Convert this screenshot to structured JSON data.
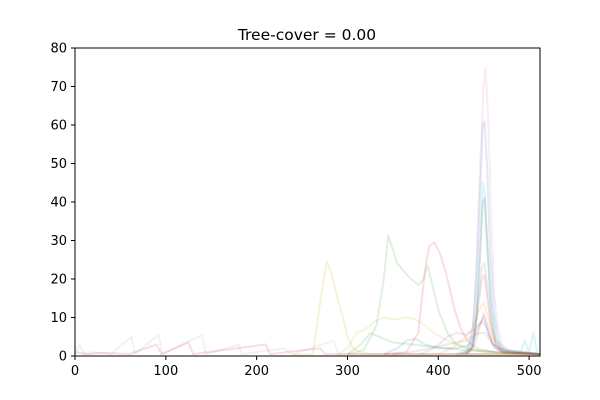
{
  "chart_data": {
    "type": "line",
    "title": "Tree-cover = 0.00",
    "xlabel": "",
    "ylabel": "",
    "xlim": [
      0,
      512
    ],
    "ylim": [
      0,
      80
    ],
    "xticks": [
      0,
      100,
      200,
      300,
      400,
      500
    ],
    "yticks": [
      0,
      10,
      20,
      30,
      40,
      50,
      60,
      70,
      80
    ],
    "grid": false,
    "legend": "none",
    "line_opacity": 0.15,
    "series": [
      {
        "color": "#d4a000",
        "points": [
          [
            240,
            0.3
          ],
          [
            262,
            0.5
          ],
          [
            270,
            14
          ],
          [
            277,
            24.5
          ],
          [
            282,
            22
          ],
          [
            288,
            16
          ],
          [
            295,
            10
          ],
          [
            300,
            5
          ],
          [
            306,
            2
          ],
          [
            315,
            0.8
          ],
          [
            330,
            0.5
          ],
          [
            512,
            0.5
          ]
        ]
      },
      {
        "color": "#2ca02c",
        "points": [
          [
            300,
            0.5
          ],
          [
            318,
            1.5
          ],
          [
            332,
            8
          ],
          [
            340,
            20
          ],
          [
            345,
            31.5
          ],
          [
            348,
            29
          ],
          [
            355,
            24
          ],
          [
            362,
            22
          ],
          [
            370,
            20
          ],
          [
            378,
            18.5
          ],
          [
            384,
            20
          ],
          [
            388,
            23.5
          ],
          [
            393,
            19
          ],
          [
            400,
            12
          ],
          [
            410,
            6
          ],
          [
            420,
            3
          ],
          [
            440,
            1.5
          ],
          [
            480,
            0.5
          ],
          [
            512,
            0.5
          ]
        ]
      },
      {
        "color": "#d62728",
        "points": [
          [
            340,
            0.5
          ],
          [
            365,
            1
          ],
          [
            378,
            6
          ],
          [
            385,
            22
          ],
          [
            390,
            28.5
          ],
          [
            396,
            29.5
          ],
          [
            402,
            26.5
          ],
          [
            408,
            22
          ],
          [
            413,
            17
          ],
          [
            418,
            12
          ],
          [
            425,
            7
          ],
          [
            432,
            4
          ],
          [
            442,
            2
          ],
          [
            460,
            1
          ],
          [
            512,
            0.5
          ]
        ]
      },
      {
        "color": "#e377c2",
        "points": [
          [
            420,
            0.5
          ],
          [
            432,
            1
          ],
          [
            438,
            6
          ],
          [
            442,
            24
          ],
          [
            446,
            50
          ],
          [
            450,
            70
          ],
          [
            452,
            75
          ],
          [
            455,
            62
          ],
          [
            458,
            38
          ],
          [
            461,
            18
          ],
          [
            465,
            8
          ],
          [
            470,
            3
          ],
          [
            480,
            1
          ],
          [
            512,
            0.5
          ]
        ]
      },
      {
        "color": "#1f77b4",
        "points": [
          [
            420,
            0.5
          ],
          [
            432,
            1.5
          ],
          [
            438,
            7
          ],
          [
            442,
            20
          ],
          [
            446,
            42
          ],
          [
            449,
            60
          ],
          [
            451,
            61
          ],
          [
            454,
            48
          ],
          [
            457,
            28
          ],
          [
            461,
            12
          ],
          [
            466,
            4
          ],
          [
            475,
            1
          ],
          [
            512,
            0.5
          ]
        ]
      },
      {
        "color": "#17becf",
        "points": [
          [
            430,
            0.5
          ],
          [
            438,
            2
          ],
          [
            442,
            12
          ],
          [
            446,
            30
          ],
          [
            449,
            45
          ],
          [
            451,
            43
          ],
          [
            454,
            30
          ],
          [
            458,
            15
          ],
          [
            463,
            5
          ],
          [
            472,
            1
          ],
          [
            512,
            0.5
          ]
        ]
      },
      {
        "color": "#444444",
        "points": [
          [
            430,
            0.5
          ],
          [
            438,
            2
          ],
          [
            442,
            10
          ],
          [
            446,
            26
          ],
          [
            449,
            40
          ],
          [
            451,
            41
          ],
          [
            454,
            28
          ],
          [
            458,
            12
          ],
          [
            463,
            4
          ],
          [
            472,
            1
          ],
          [
            512,
            0.5
          ]
        ]
      },
      {
        "color": "#7f7f7f",
        "points": [
          [
            425,
            0.5
          ],
          [
            435,
            1.5
          ],
          [
            440,
            6
          ],
          [
            444,
            15
          ],
          [
            448,
            23
          ],
          [
            451,
            24
          ],
          [
            454,
            18
          ],
          [
            458,
            9
          ],
          [
            463,
            3
          ],
          [
            470,
            1
          ],
          [
            512,
            0.5
          ]
        ]
      },
      {
        "color": "#8c564b",
        "points": [
          [
            425,
            0.5
          ],
          [
            435,
            1
          ],
          [
            440,
            5
          ],
          [
            444,
            13
          ],
          [
            448,
            20
          ],
          [
            451,
            21
          ],
          [
            454,
            15
          ],
          [
            458,
            8
          ],
          [
            463,
            3
          ],
          [
            470,
            1
          ],
          [
            512,
            0.5
          ]
        ]
      },
      {
        "color": "#bcbd22",
        "points": [
          [
            290,
            0.5
          ],
          [
            300,
            2
          ],
          [
            310,
            6
          ],
          [
            320,
            7
          ],
          [
            330,
            9
          ],
          [
            340,
            10
          ],
          [
            350,
            9.5
          ],
          [
            365,
            10
          ],
          [
            375,
            9.5
          ],
          [
            385,
            8
          ],
          [
            395,
            6
          ],
          [
            410,
            4
          ],
          [
            430,
            2
          ],
          [
            450,
            1
          ],
          [
            512,
            0.5
          ]
        ]
      },
      {
        "color": "#2ca02c",
        "points": [
          [
            300,
            0.5
          ],
          [
            315,
            3
          ],
          [
            325,
            6
          ],
          [
            335,
            5
          ],
          [
            350,
            3.5
          ],
          [
            370,
            3
          ],
          [
            390,
            2.5
          ],
          [
            410,
            2
          ],
          [
            430,
            1.5
          ],
          [
            512,
            0.5
          ]
        ]
      },
      {
        "color": "#1f77b4",
        "points": [
          [
            340,
            0.5
          ],
          [
            355,
            2
          ],
          [
            365,
            4
          ],
          [
            375,
            4.5
          ],
          [
            385,
            3
          ],
          [
            400,
            2
          ],
          [
            420,
            2
          ],
          [
            435,
            3
          ],
          [
            445,
            8
          ],
          [
            450,
            10
          ],
          [
            455,
            6
          ],
          [
            462,
            2
          ],
          [
            512,
            0.5
          ]
        ]
      },
      {
        "color": "#9467bd",
        "points": [
          [
            380,
            0.5
          ],
          [
            395,
            2
          ],
          [
            410,
            5
          ],
          [
            420,
            6
          ],
          [
            430,
            5.5
          ],
          [
            440,
            7
          ],
          [
            448,
            9
          ],
          [
            452,
            8
          ],
          [
            458,
            4
          ],
          [
            466,
            1.5
          ],
          [
            512,
            0.5
          ]
        ]
      },
      {
        "color": "#ff7f0e",
        "points": [
          [
            400,
            0.5
          ],
          [
            415,
            2
          ],
          [
            425,
            4
          ],
          [
            435,
            6
          ],
          [
            445,
            12
          ],
          [
            450,
            14
          ],
          [
            455,
            10
          ],
          [
            460,
            5
          ],
          [
            468,
            2
          ],
          [
            480,
            1
          ],
          [
            512,
            0.5
          ]
        ]
      },
      {
        "color": "#7f7f7f",
        "points": [
          [
            350,
            0.5
          ],
          [
            370,
            1
          ],
          [
            390,
            2
          ],
          [
            410,
            3
          ],
          [
            430,
            4
          ],
          [
            445,
            6
          ],
          [
            452,
            6
          ],
          [
            460,
            3
          ],
          [
            475,
            1.5
          ],
          [
            495,
            1
          ],
          [
            512,
            0.5
          ]
        ]
      },
      {
        "color": "#d62728",
        "points": [
          [
            430,
            0.5
          ],
          [
            440,
            3
          ],
          [
            446,
            8
          ],
          [
            450,
            11
          ],
          [
            454,
            8
          ],
          [
            460,
            3
          ],
          [
            470,
            1
          ],
          [
            512,
            0.5
          ]
        ]
      },
      {
        "color": "#aaaaaa",
        "points": [
          [
            0,
            0.5
          ],
          [
            5,
            3
          ],
          [
            10,
            0.5
          ],
          [
            20,
            1
          ],
          [
            40,
            0.5
          ],
          [
            62,
            5
          ],
          [
            66,
            0.5
          ],
          [
            92,
            5.5
          ],
          [
            96,
            0.5
          ],
          [
            140,
            5.5
          ],
          [
            144,
            0.5
          ],
          [
            180,
            3
          ],
          [
            184,
            0.5
          ],
          [
            230,
            2
          ],
          [
            240,
            0.5
          ],
          [
            285,
            4
          ],
          [
            290,
            0.5
          ],
          [
            512,
            0.5
          ]
        ]
      },
      {
        "color": "#d62728",
        "points": [
          [
            0,
            1
          ],
          [
            15,
            0.5
          ],
          [
            30,
            0.8
          ],
          [
            60,
            0.5
          ],
          [
            90,
            3
          ],
          [
            95,
            0.5
          ],
          [
            125,
            3.5
          ],
          [
            130,
            0.5
          ],
          [
            210,
            3
          ],
          [
            215,
            0.5
          ],
          [
            270,
            2
          ],
          [
            275,
            0.5
          ],
          [
            512,
            0.5
          ]
        ]
      },
      {
        "color": "#17becf",
        "points": [
          [
            490,
            0.5
          ],
          [
            495,
            4
          ],
          [
            500,
            1
          ],
          [
            505,
            6
          ],
          [
            509,
            0.5
          ],
          [
            512,
            0.5
          ]
        ]
      }
    ]
  }
}
